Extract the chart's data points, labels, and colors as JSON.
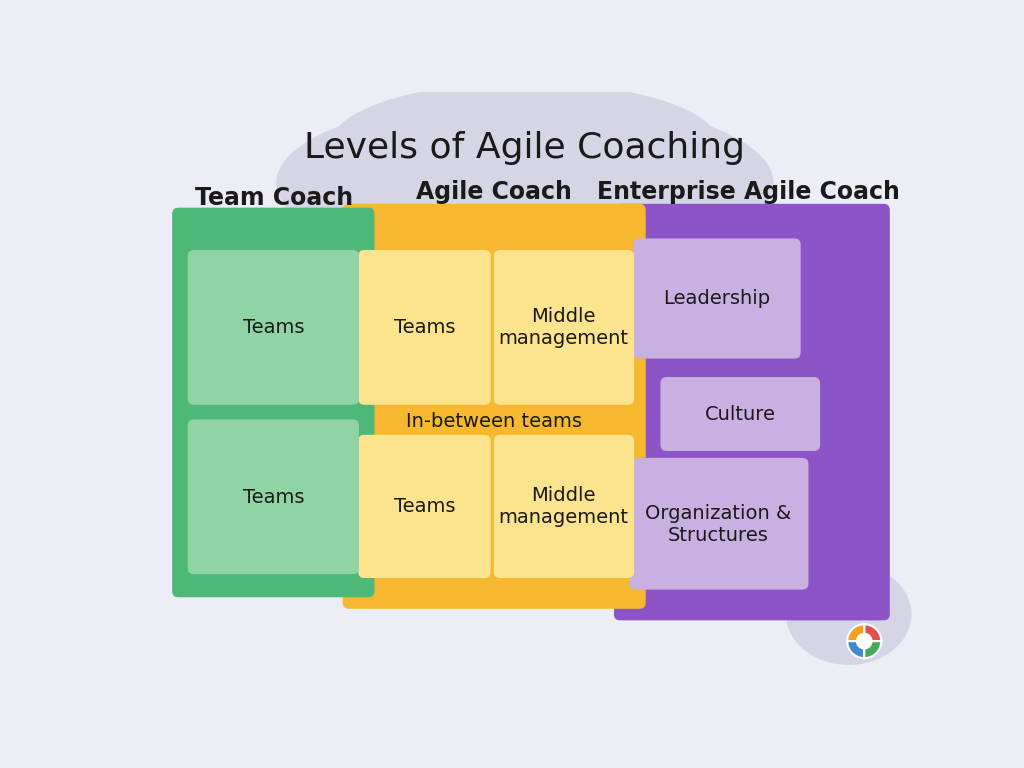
{
  "title": "Levels of Agile Coaching",
  "title_fontsize": 26,
  "background_color": "#edeef5",
  "blob_color": "#d5d5e5",
  "section_labels": [
    "Team Coach",
    "Agile Coach",
    "Enterprise Agile Coach"
  ],
  "section_label_fontsize": 17,
  "green_box_color": "#4db878",
  "green_inner_color": "#90d4a4",
  "yellow_box_color": "#f5b82e",
  "yellow_inner_color": "#fce48e",
  "purple_box_color": "#8b55c8",
  "purple_inner_color": "#c8b0e0",
  "text_color": "#1a1a1a",
  "inner_text_fontsize": 14,
  "inbetween_text": "In-between teams",
  "inbetween_fontsize": 14,
  "team_coach_boxes": [
    "Teams",
    "Teams"
  ],
  "agile_coach_boxes_row1": [
    "Teams",
    "Middle\nmanagement"
  ],
  "agile_coach_boxes_row2": [
    "Teams",
    "Middle\nmanagement"
  ],
  "enterprise_boxes": [
    "Leadership",
    "Culture",
    "Organization &\nStructures"
  ],
  "logo_colors": [
    "#e05050",
    "#f5a020",
    "#4488cc",
    "#44aa55"
  ]
}
